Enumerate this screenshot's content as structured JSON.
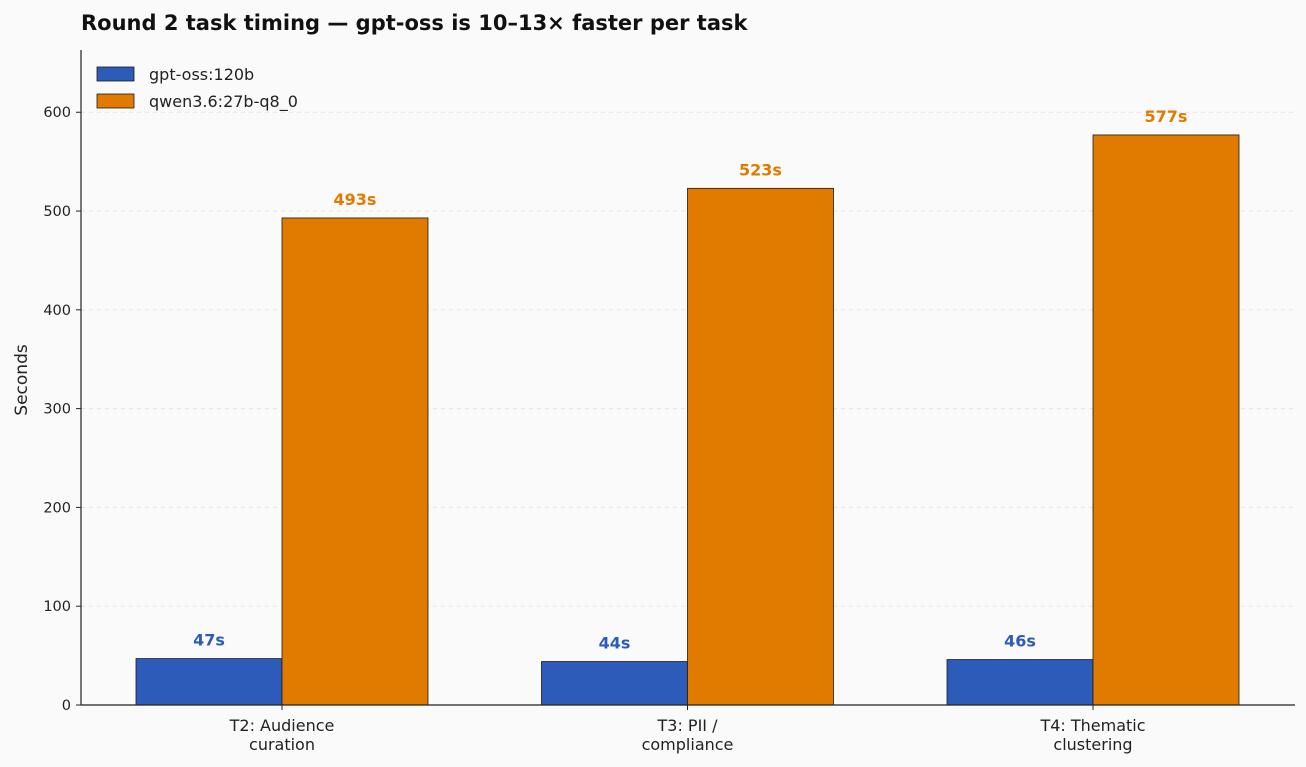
{
  "chart_data": {
    "type": "bar",
    "title": "Round 2 task timing — gpt-oss is 10–13× faster per task",
    "xlabel": "",
    "ylabel": "Seconds",
    "categories": [
      [
        "T2: Audience",
        "curation"
      ],
      [
        "T3: PII /",
        "compliance"
      ],
      [
        "T4: Thematic",
        "clustering"
      ]
    ],
    "series": [
      {
        "name": "gpt-oss:120b",
        "values": [
          47,
          44,
          46
        ],
        "labels": [
          "47s",
          "44s",
          "46s"
        ],
        "color": "#2d5bba"
      },
      {
        "name": "qwen3.6:27b-q8_0",
        "values": [
          493,
          523,
          577
        ],
        "labels": [
          "493s",
          "523s",
          "577s"
        ],
        "color": "#e07b00"
      }
    ],
    "ylim": [
      0,
      663
    ],
    "yticks": [
      0,
      100,
      200,
      300,
      400,
      500,
      600
    ],
    "grid": "y-dashed",
    "legend": "top-left"
  }
}
